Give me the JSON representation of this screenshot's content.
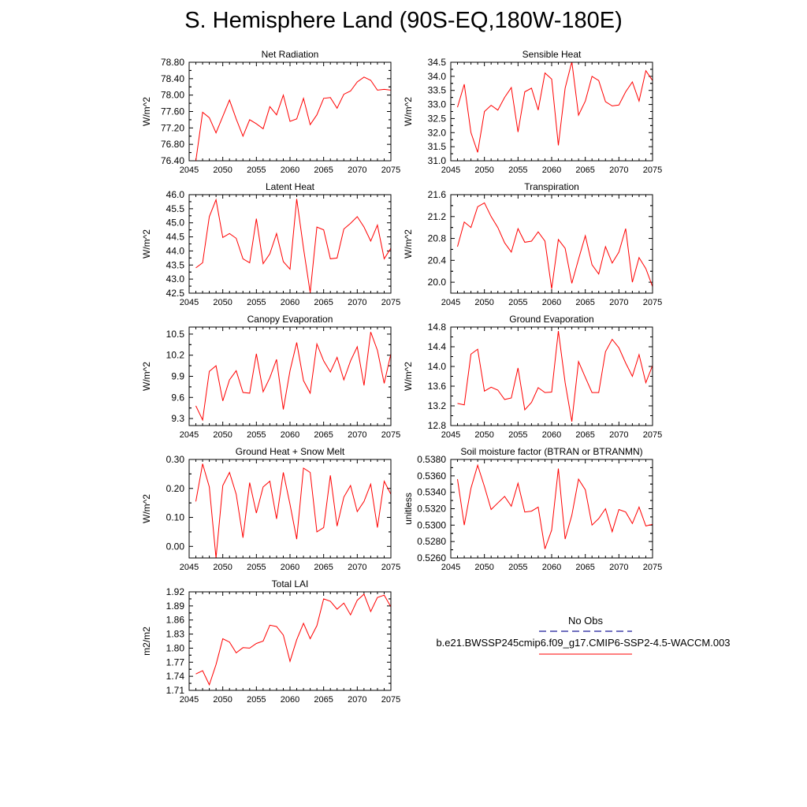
{
  "page": {
    "title": "S. Hemisphere Land (90S-EQ,180W-180E)"
  },
  "legend": {
    "obs_label": "No Obs",
    "case_label": "b.e21.BWSSP245cmip6.f09_g17.CMIP6-SSP2-4.5-WACCM.003",
    "obs_color": "#1a1a99",
    "case_color": "#ff0000"
  },
  "chart_data": [
    {
      "type": "line",
      "title": "Net Radiation",
      "ylabel": "W/m^2",
      "xlim": [
        2045,
        2075
      ],
      "ylim": [
        76.4,
        78.8
      ],
      "xticks": [
        "2045",
        "2050",
        "2055",
        "2060",
        "2065",
        "2070",
        "2075"
      ],
      "yticks": [
        "76.40",
        "76.80",
        "77.20",
        "77.60",
        "78.00",
        "78.40",
        "78.80"
      ],
      "x_start": 2046,
      "values": [
        76.4,
        77.58,
        77.45,
        77.08,
        77.48,
        77.88,
        77.42,
        77.0,
        77.4,
        77.3,
        77.18,
        77.72,
        77.52,
        78.0,
        77.36,
        77.42,
        77.92,
        77.28,
        77.52,
        77.92,
        77.94,
        77.68,
        78.02,
        78.1,
        78.32,
        78.44,
        78.36,
        78.12,
        78.14,
        78.12
      ]
    },
    {
      "type": "line",
      "title": "Sensible Heat",
      "ylabel": "W/m^2",
      "xlim": [
        2045,
        2075
      ],
      "ylim": [
        31.0,
        34.5
      ],
      "xticks": [
        "2045",
        "2050",
        "2055",
        "2060",
        "2065",
        "2070",
        "2075"
      ],
      "yticks": [
        "31.0",
        "31.5",
        "32.0",
        "32.5",
        "33.0",
        "33.5",
        "34.0",
        "34.5"
      ],
      "x_start": 2046,
      "values": [
        32.9,
        33.72,
        32.0,
        31.3,
        32.75,
        32.97,
        32.8,
        33.25,
        33.6,
        32.02,
        33.45,
        33.58,
        32.8,
        34.12,
        33.9,
        31.55,
        33.58,
        34.52,
        32.62,
        33.12,
        34.0,
        33.85,
        33.1,
        32.95,
        32.98,
        33.45,
        33.8,
        33.12,
        34.2,
        33.85
      ]
    },
    {
      "type": "line",
      "title": "Latent Heat",
      "ylabel": "W/m^2",
      "xlim": [
        2045,
        2075
      ],
      "ylim": [
        42.5,
        46.0
      ],
      "xticks": [
        "2045",
        "2050",
        "2055",
        "2060",
        "2065",
        "2070",
        "2075"
      ],
      "yticks": [
        "42.5",
        "43.0",
        "43.5",
        "44.0",
        "44.5",
        "45.0",
        "45.5",
        "46.0"
      ],
      "x_start": 2046,
      "values": [
        43.4,
        43.58,
        45.22,
        45.82,
        44.48,
        44.62,
        44.45,
        43.72,
        43.58,
        45.15,
        43.55,
        43.9,
        44.62,
        43.62,
        43.35,
        45.85,
        44.1,
        42.52,
        44.85,
        44.75,
        43.72,
        43.75,
        44.78,
        44.98,
        45.22,
        44.85,
        44.35,
        44.92,
        43.72,
        44.1
      ]
    },
    {
      "type": "line",
      "title": "Transpiration",
      "ylabel": "W/m^2",
      "xlim": [
        2045,
        2075
      ],
      "ylim": [
        19.8,
        21.6
      ],
      "xticks": [
        "2045",
        "2050",
        "2055",
        "2060",
        "2065",
        "2070",
        "2075"
      ],
      "yticks": [
        "20.0",
        "20.4",
        "20.8",
        "21.2",
        "21.6"
      ],
      "x_start": 2046,
      "values": [
        20.65,
        21.1,
        21.0,
        21.38,
        21.45,
        21.2,
        21.0,
        20.72,
        20.55,
        20.98,
        20.73,
        20.75,
        20.92,
        20.75,
        19.88,
        20.78,
        20.62,
        19.98,
        20.42,
        20.85,
        20.32,
        20.15,
        20.65,
        20.35,
        20.55,
        20.98,
        20.0,
        20.45,
        20.25,
        19.92
      ]
    },
    {
      "type": "line",
      "title": "Canopy Evaporation",
      "ylabel": "W/m^2",
      "xlim": [
        2045,
        2075
      ],
      "ylim": [
        9.2,
        10.6
      ],
      "xticks": [
        "2045",
        "2050",
        "2055",
        "2060",
        "2065",
        "2070",
        "2075"
      ],
      "yticks": [
        "9.3",
        "9.6",
        "9.9",
        "10.2",
        "10.5"
      ],
      "x_start": 2046,
      "values": [
        9.48,
        9.28,
        9.97,
        10.05,
        9.55,
        9.85,
        9.98,
        9.67,
        9.66,
        10.22,
        9.68,
        9.88,
        10.14,
        9.43,
        9.98,
        10.38,
        9.84,
        9.66,
        10.36,
        10.12,
        9.96,
        10.17,
        9.85,
        10.12,
        10.32,
        9.77,
        10.53,
        10.27,
        9.8,
        10.22
      ]
    },
    {
      "type": "line",
      "title": "Ground Evaporation",
      "ylabel": "W/m^2",
      "xlim": [
        2045,
        2075
      ],
      "ylim": [
        12.8,
        14.8
      ],
      "xticks": [
        "2045",
        "2050",
        "2055",
        "2060",
        "2065",
        "2070",
        "2075"
      ],
      "yticks": [
        "12.8",
        "13.2",
        "13.6",
        "14.0",
        "14.4",
        "14.8"
      ],
      "x_start": 2046,
      "values": [
        13.25,
        13.22,
        14.25,
        14.35,
        13.5,
        13.58,
        13.52,
        13.33,
        13.36,
        13.97,
        13.12,
        13.27,
        13.57,
        13.47,
        13.48,
        14.72,
        13.67,
        12.88,
        14.1,
        13.78,
        13.47,
        13.47,
        14.3,
        14.55,
        14.38,
        14.07,
        13.8,
        14.24,
        13.67,
        14.02
      ]
    },
    {
      "type": "line",
      "title": "Ground Heat + Snow Melt",
      "ylabel": "W/m^2",
      "xlim": [
        2045,
        2075
      ],
      "ylim": [
        -0.04,
        0.3
      ],
      "xticks": [
        "2045",
        "2050",
        "2055",
        "2060",
        "2065",
        "2070",
        "2075"
      ],
      "yticks": [
        "0.00",
        "0.10",
        "0.20",
        "0.30"
      ],
      "x_start": 2046,
      "values": [
        0.155,
        0.285,
        0.205,
        -0.04,
        0.21,
        0.255,
        0.18,
        0.03,
        0.22,
        0.115,
        0.205,
        0.225,
        0.095,
        0.255,
        0.145,
        0.025,
        0.27,
        0.255,
        0.05,
        0.065,
        0.245,
        0.07,
        0.17,
        0.21,
        0.12,
        0.155,
        0.215,
        0.065,
        0.225,
        0.18
      ]
    },
    {
      "type": "line",
      "title": "Soil moisture factor (BTRAN or BTRANMN)",
      "ylabel": "unitless",
      "xlim": [
        2045,
        2075
      ],
      "ylim": [
        0.526,
        0.538
      ],
      "xticks": [
        "2045",
        "2050",
        "2055",
        "2060",
        "2065",
        "2070",
        "2075"
      ],
      "yticks": [
        "0.5260",
        "0.5280",
        "0.5300",
        "0.5320",
        "0.5340",
        "0.5360",
        "0.5380"
      ],
      "x_start": 2046,
      "values": [
        0.5356,
        0.53,
        0.5345,
        0.5373,
        0.5347,
        0.5319,
        0.5327,
        0.5335,
        0.5323,
        0.5351,
        0.5316,
        0.5317,
        0.5322,
        0.5271,
        0.5294,
        0.5369,
        0.5283,
        0.5312,
        0.5356,
        0.5343,
        0.53,
        0.5308,
        0.532,
        0.5292,
        0.5319,
        0.5316,
        0.5302,
        0.5322,
        0.5299,
        0.5301
      ]
    },
    {
      "type": "line",
      "title": "Total LAI",
      "ylabel": "m2/m2",
      "xlim": [
        2045,
        2075
      ],
      "ylim": [
        1.71,
        1.92
      ],
      "xticks": [
        "2045",
        "2050",
        "2055",
        "2060",
        "2065",
        "2070",
        "2075"
      ],
      "yticks": [
        "1.71",
        "1.74",
        "1.77",
        "1.80",
        "1.83",
        "1.86",
        "1.89",
        "1.92"
      ],
      "x_start": 2046,
      "values": [
        1.745,
        1.752,
        1.722,
        1.765,
        1.82,
        1.813,
        1.79,
        1.801,
        1.8,
        1.81,
        1.815,
        1.849,
        1.846,
        1.828,
        1.772,
        1.818,
        1.853,
        1.82,
        1.848,
        1.905,
        1.9,
        1.883,
        1.896,
        1.871,
        1.902,
        1.915,
        1.878,
        1.908,
        1.913,
        1.888
      ]
    }
  ]
}
